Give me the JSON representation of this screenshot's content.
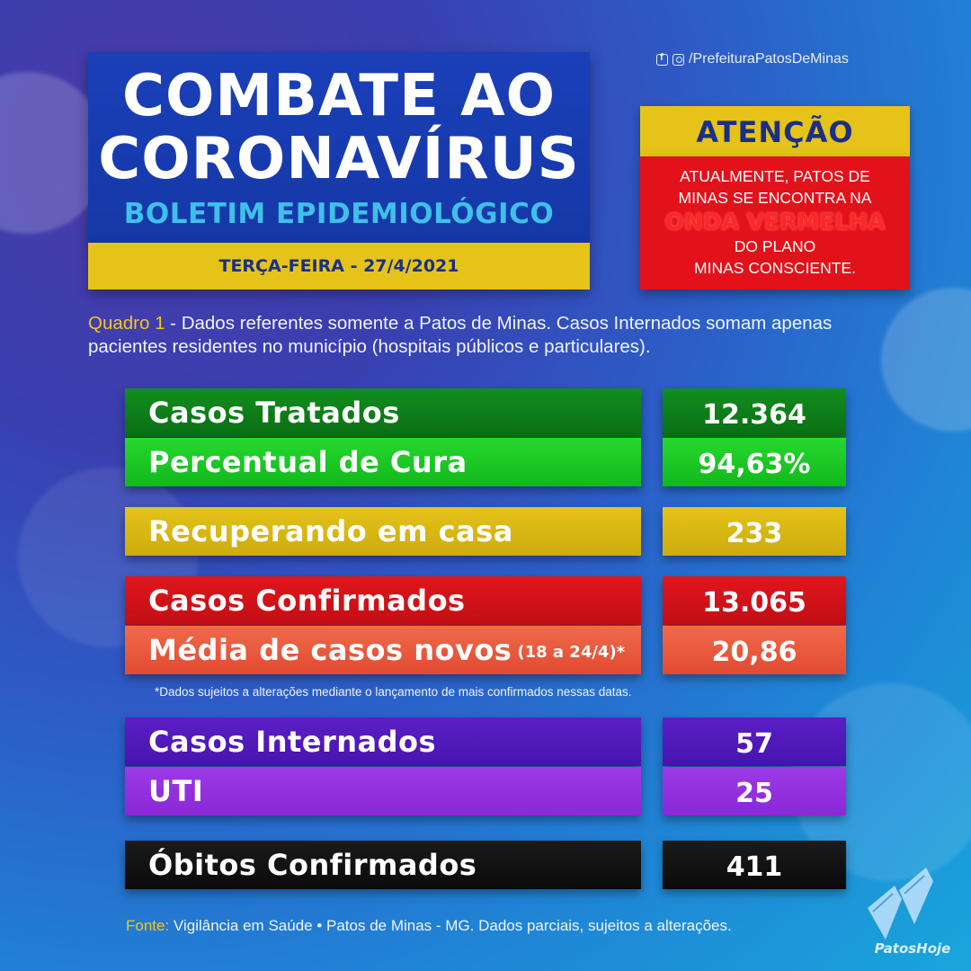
{
  "header": {
    "title_line1": "COMBATE AO",
    "title_line2": "CORONAVÍRUS",
    "subtitle": "BOLETIM EPIDEMIOLÓGICO",
    "date": "TERÇA-FEIRA - 27/4/2021"
  },
  "social": {
    "handle": "/PrefeituraPatosDeMinas",
    "icons": [
      "facebook-icon",
      "instagram-icon"
    ]
  },
  "attention": {
    "title": "ATENÇÃO",
    "line1": "ATUALMENTE, PATOS DE",
    "line2": "MINAS SE ENCONTRA NA",
    "wave": "ONDA VERMELHA",
    "line3": "DO PLANO",
    "line4": "MINAS CONSCIENTE."
  },
  "note": {
    "label": "Quadro 1",
    "text": " - Dados referentes somente a Patos de Minas. Casos Internados somam apenas pacientes residentes no município (hospitais públicos e particulares)."
  },
  "rows": {
    "treated": {
      "label": "Casos Tratados",
      "value": "12.364"
    },
    "cure": {
      "label": "Percentual de Cura",
      "value": "94,63%"
    },
    "home": {
      "label": "Recuperando em casa",
      "value": "233"
    },
    "confirmed": {
      "label": "Casos Confirmados",
      "value": "13.065"
    },
    "average": {
      "label": "Média de casos novos",
      "label_small": "(18 a 24/4)*",
      "value": "20,86"
    },
    "hospitalized": {
      "label": "Casos Internados",
      "value": "57"
    },
    "icu": {
      "label": "UTI",
      "value": "25"
    },
    "deaths": {
      "label": "Óbitos Confirmados",
      "value": "411"
    }
  },
  "footnote": "*Dados sujeitos a alterações mediante o lançamento de mais confirmados nessas datas.",
  "source": {
    "label": "Fonte:",
    "text": " Vigilância em Saúde • Patos de Minas - MG. Dados parciais, sujeitos a alterações."
  },
  "logo": {
    "text": "PatosHoje",
    "icon": "flippers-icon"
  },
  "colors": {
    "title_bg": "#1a3fb8",
    "accent_yellow": "#e6c318",
    "navy_text": "#1b2f86",
    "dark_green": "#128e1e",
    "light_green": "#26d82e",
    "red": "#e0161e",
    "salmon": "#f06a4a",
    "purple": "#5a1fc6",
    "violet": "#9d3ae6",
    "black": "#111111"
  }
}
